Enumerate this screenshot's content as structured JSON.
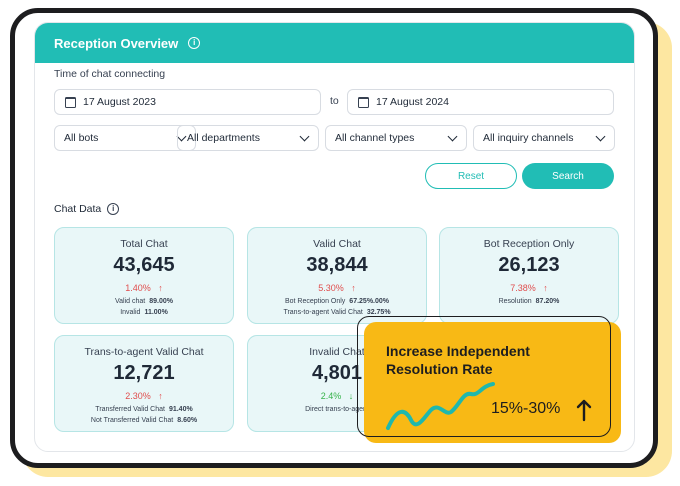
{
  "header": {
    "title": "Reception Overview"
  },
  "filters": {
    "time_label": "Time of chat connecting",
    "start_date": "17 August 2023",
    "to_label": "to",
    "end_date": "17 August 2024",
    "selects": [
      "All bots",
      "All departments",
      "All channel types",
      "All inquiry channels"
    ]
  },
  "buttons": {
    "reset": "Reset",
    "search": "Search"
  },
  "chat_data_label": "Chat Data",
  "cards": [
    {
      "title": "Total Chat",
      "value": "43,645",
      "change": "1.40%",
      "trend": "up",
      "details": [
        {
          "label": "Valid chat",
          "value": "89.00%"
        },
        {
          "label": "Invalid",
          "value": "11.00%"
        }
      ]
    },
    {
      "title": "Valid Chat",
      "value": "38,844",
      "change": "5.30%",
      "trend": "up",
      "details": [
        {
          "label": "Bot Reception Only",
          "value": "67.25%.00%"
        },
        {
          "label": "Trans-to-agent Valid Chat",
          "value": "32.75%"
        }
      ]
    },
    {
      "title": "Bot Reception Only",
      "value": "26,123",
      "change": "7.38%",
      "trend": "up",
      "details": [
        {
          "label": "Resolution",
          "value": "87.20%"
        }
      ]
    },
    {
      "title": "Trans-to-agent Valid Chat",
      "value": "12,721",
      "change": "2.30%",
      "trend": "up",
      "details": [
        {
          "label": "Transferred Valid Chat",
          "value": "91.40%"
        },
        {
          "label": "Not Transferred Valid Chat",
          "value": "8.60%"
        }
      ]
    },
    {
      "title": "Invalid Chat",
      "value": "4,801",
      "change": "2.4%",
      "trend": "down",
      "details": [
        {
          "label": "Direct trans-to-agent",
          "value": ""
        }
      ]
    }
  ],
  "promo": {
    "title": "Increase Independent Resolution Rate",
    "value": "15%-30%"
  },
  "colors": {
    "accent": "#21bdb5",
    "promo": "#f8b915",
    "up": "#e04e4e",
    "down": "#36b24a"
  },
  "icons": {
    "info": "info-icon",
    "calendar": "calendar-icon",
    "chevron": "chevron-down-icon",
    "arrow_up": "arrow-up-icon",
    "arrow_down": "arrow-down-icon",
    "wave": "wave-icon"
  }
}
